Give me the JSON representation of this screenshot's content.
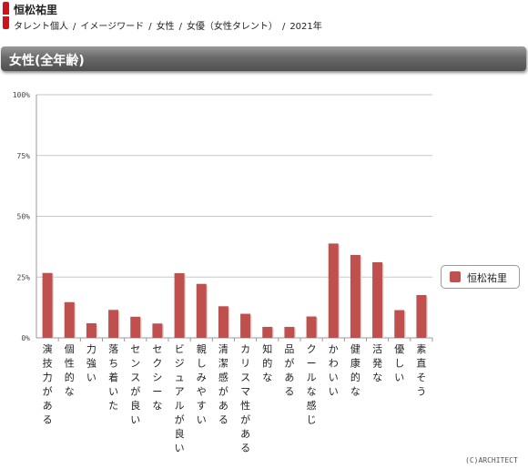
{
  "header": {
    "talent_name": "恒松祐里",
    "breadcrumb": [
      "タレント個人",
      "イメージワード",
      "女性",
      "女優（女性タレント）",
      "2021年"
    ]
  },
  "section_title": "女性(全年齢)",
  "legend_label": "恒松祐里",
  "copyright": "(C)ARCHITECT",
  "colors": {
    "bar": "#c0504d",
    "header_accent": "#c8161d"
  },
  "chart_data": {
    "type": "bar",
    "categories": [
      "演技力がある",
      "個性的な",
      "力強い",
      "落ち着いた",
      "センスが良い",
      "セクシーな",
      "ビジュアルが良い",
      "親しみやすい",
      "清潔感がある",
      "カリスマ性がある",
      "知的な",
      "品がある",
      "クールな感じ",
      "かわいい",
      "健康的な",
      "活発な",
      "優しい",
      "素直そう"
    ],
    "series": [
      {
        "name": "恒松祐里",
        "values": [
          26.7,
          14.7,
          6.0,
          11.5,
          8.7,
          5.9,
          26.6,
          22.2,
          13.0,
          9.9,
          4.5,
          4.5,
          8.8,
          38.8,
          34.1,
          31.1,
          11.4,
          17.6
        ]
      }
    ],
    "ylim": [
      0,
      100
    ],
    "yticks": [
      "0%",
      "25%",
      "50%",
      "75%",
      "100%"
    ],
    "grid": true,
    "legend": "right"
  }
}
